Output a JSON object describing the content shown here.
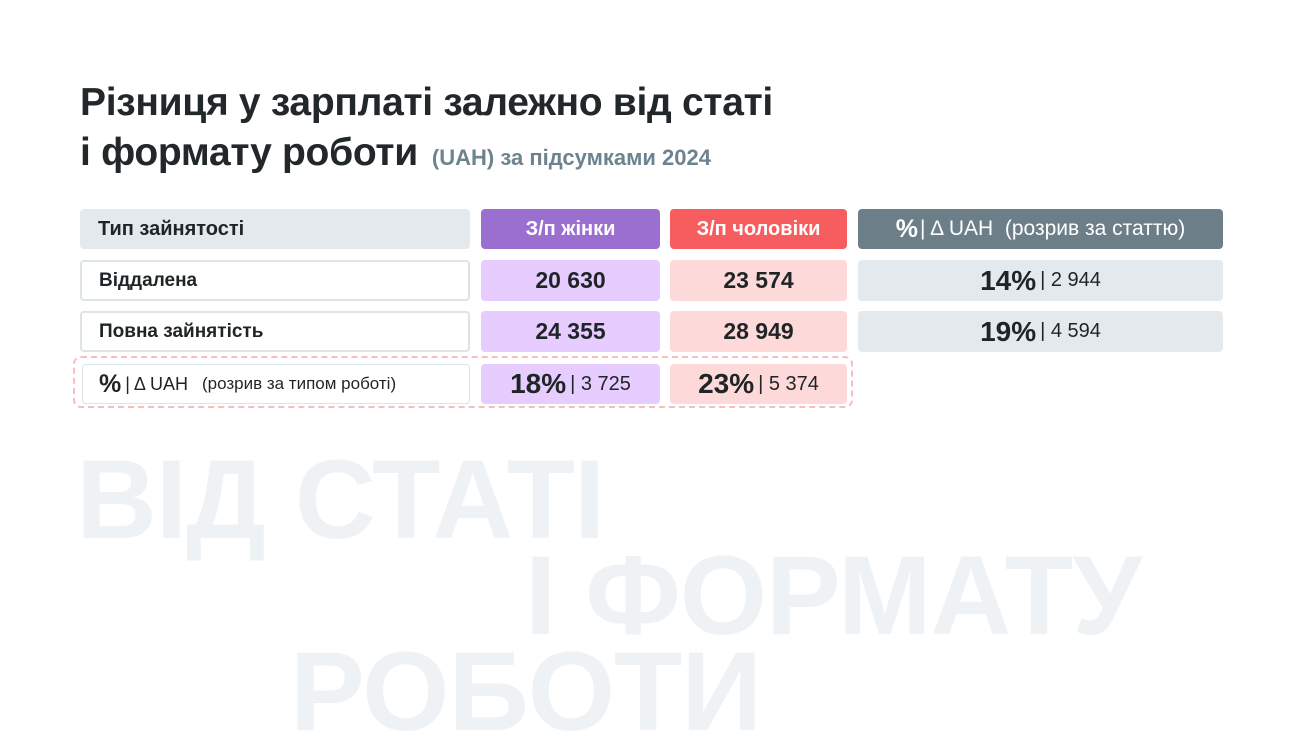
{
  "title": {
    "line1": "Різниця у зарплаті залежно від статі",
    "line2": "і формату роботи",
    "subtitle": "(UAH) за підсумками 2024"
  },
  "watermark": {
    "line1": "ВІД СТАТІ",
    "line2": "І ФОРМАТУ",
    "line3": "РОБОТИ"
  },
  "table": {
    "headers": {
      "type": "Тип зайнятості",
      "women": "З/п жінки",
      "men": "З/п чоловіки",
      "gap_pct": "%",
      "gap_text": "| Δ UAH  (розрив за статтю)"
    },
    "rows": [
      {
        "label": "Віддалена",
        "women": "20 630",
        "men": "23 574",
        "gap_pct": "14%",
        "gap_uah": "2 944"
      },
      {
        "label": "Повна зайнятість",
        "women": "24 355",
        "men": "28 949",
        "gap_pct": "19%",
        "gap_uah": "4 594"
      }
    ],
    "format_gap": {
      "pct_symbol": "%",
      "label_text": "| Δ UAH",
      "note": "(розрив за типом роботі)",
      "women_pct": "18%",
      "women_uah": "3 725",
      "men_pct": "23%",
      "men_uah": "5 374"
    }
  },
  "colors": {
    "women_header": "#9b6fd0",
    "men_header": "#f75d5f",
    "gap_header": "#6c7f89",
    "women_cell": "#e6ccff",
    "men_cell": "#fdd9d9",
    "neutral_cell": "#e3e9ec"
  }
}
